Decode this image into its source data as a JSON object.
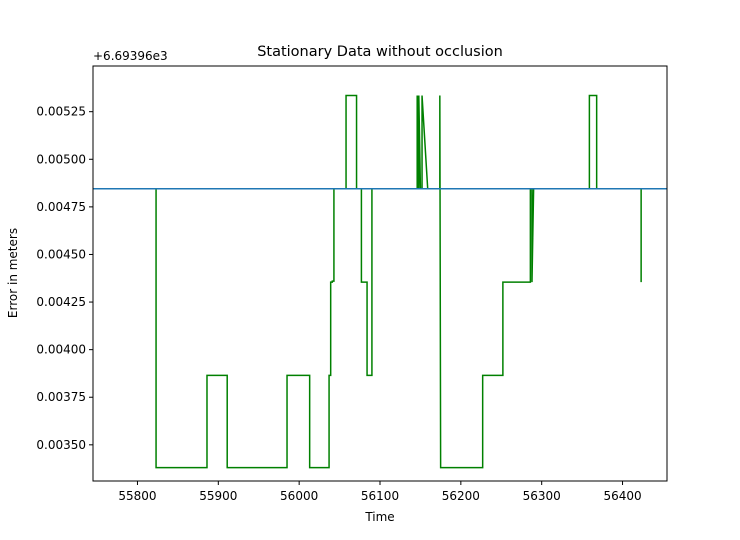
{
  "chart_data": {
    "type": "line",
    "title": "Stationary Data without occlusion",
    "xlabel": "Time",
    "ylabel": "Error in meters",
    "offset_label": "+6.69396e3",
    "xlim": [
      55745,
      56455
    ],
    "ylim": [
      0.00331,
      0.00549
    ],
    "xticks": [
      55800,
      55900,
      56000,
      56100,
      56200,
      56300,
      56400
    ],
    "yticks": [
      {
        "value": 0.0035,
        "label": "0.00350"
      },
      {
        "value": 0.00375,
        "label": "0.00375"
      },
      {
        "value": 0.004,
        "label": "0.00400"
      },
      {
        "value": 0.00425,
        "label": "0.00425"
      },
      {
        "value": 0.0045,
        "label": "0.00450"
      },
      {
        "value": 0.00475,
        "label": "0.00475"
      },
      {
        "value": 0.005,
        "label": "0.00500"
      },
      {
        "value": 0.00525,
        "label": "0.00525"
      }
    ],
    "grid": false,
    "series": [
      {
        "color": "#008000",
        "style": "step",
        "x": [
          55775,
          55823,
          55823,
          55886,
          55886,
          55911,
          55911,
          55985,
          55985,
          56013,
          56013,
          56037,
          56037,
          56039,
          56039,
          56041,
          56041,
          56043,
          56043,
          56058,
          56058,
          56071,
          56071,
          56077,
          56077,
          56084,
          56084,
          56090,
          56090,
          56146,
          56146,
          56147,
          56147,
          56148,
          56148,
          56150,
          56150,
          56152,
          56152,
          56159,
          56159,
          56160,
          56160,
          56174,
          56174,
          56175,
          56175,
          56227,
          56227,
          56252,
          56252,
          56286,
          56286,
          56288,
          56288,
          56290,
          56290,
          56291,
          56291,
          56359,
          56359,
          56368,
          56368,
          56423,
          56423
        ],
        "y": [
          0.004845,
          0.004845,
          0.00338,
          0.00338,
          0.003865,
          0.003865,
          0.00338,
          0.00338,
          0.003865,
          0.003865,
          0.00338,
          0.00338,
          0.003865,
          0.003865,
          0.004355,
          0.004355,
          0.00436,
          0.00436,
          0.004845,
          0.004845,
          0.005335,
          0.005335,
          0.004845,
          0.004845,
          0.004355,
          0.004355,
          0.003865,
          0.003865,
          0.004845,
          0.004845,
          0.005335,
          0.004845,
          0.005335,
          0.004845,
          0.005335,
          0.004845,
          0.004845,
          0.004845,
          0.005335,
          0.004845,
          0.004845,
          0.004845,
          0.004845,
          0.004845,
          0.005335,
          0.00338,
          0.00338,
          0.00338,
          0.003865,
          0.003865,
          0.004355,
          0.004355,
          0.004845,
          0.004845,
          0.004355,
          0.004845,
          0.004845,
          0.004845,
          0.004845,
          0.004845,
          0.005335,
          0.005335,
          0.004845,
          0.004845,
          0.004355
        ]
      },
      {
        "color": "#1f77b4",
        "style": "hline",
        "y_value": 0.004845
      }
    ]
  }
}
